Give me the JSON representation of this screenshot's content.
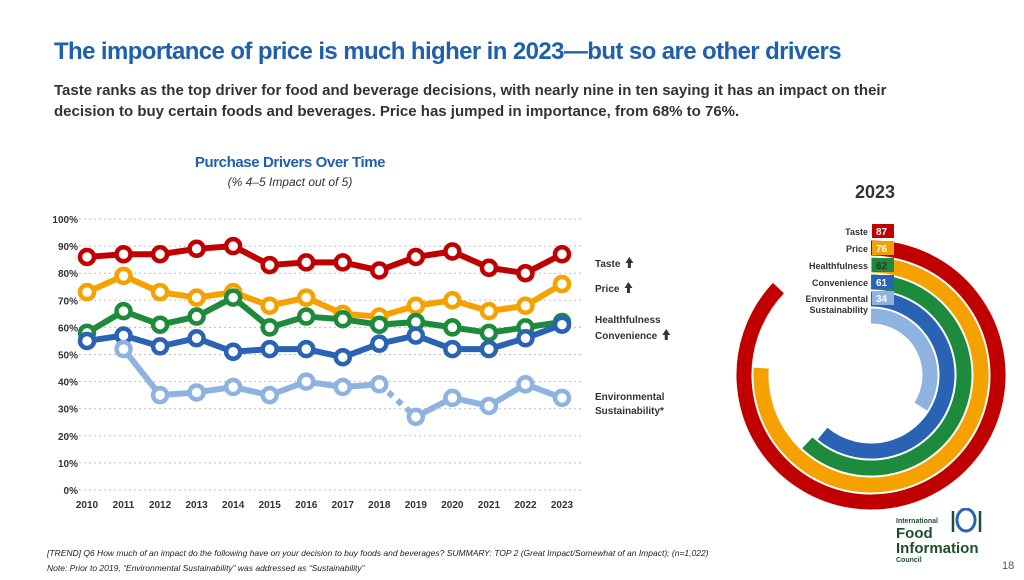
{
  "header": {
    "title": "The importance of price is much higher in 2023—but so are other drivers",
    "subtitle": "Taste ranks as the top driver for food and beverage decisions, with nearly nine in ten saying it has an impact on their decision to buy certain foods and beverages. Price has jumped in importance, from 68% to 76%."
  },
  "colors": {
    "taste": "#c00000",
    "price": "#f5a100",
    "healthfulness": "#1e8a3c",
    "convenience": "#2a62b4",
    "sustainability": "#8fb3e0",
    "title_blue": "#1f5fae"
  },
  "chart_data": [
    {
      "type": "line",
      "title": "Purchase Drivers Over Time",
      "subtitle": "(% 4–5 Impact out of 5)",
      "x": [
        "2010",
        "2011",
        "2012",
        "2013",
        "2014",
        "2015",
        "2016",
        "2017",
        "2018",
        "2019",
        "2020",
        "2021",
        "2022",
        "2023"
      ],
      "ylim": [
        0,
        100
      ],
      "yticks": [
        "0%",
        "10%",
        "20%",
        "30%",
        "40%",
        "50%",
        "60%",
        "70%",
        "80%",
        "90%",
        "100%"
      ],
      "grid": true,
      "series": [
        {
          "name": "Taste",
          "color_key": "taste",
          "arrow": "up",
          "values": [
            86,
            87,
            87,
            89,
            90,
            83,
            84,
            84,
            81,
            86,
            88,
            82,
            80,
            87
          ]
        },
        {
          "name": "Price",
          "color_key": "price",
          "arrow": "up",
          "values": [
            73,
            79,
            73,
            71,
            73,
            68,
            71,
            65,
            64,
            68,
            70,
            66,
            68,
            76
          ]
        },
        {
          "name": "Healthfulness",
          "color_key": "healthfulness",
          "arrow": "",
          "values": [
            58,
            66,
            61,
            64,
            71,
            60,
            64,
            63,
            61,
            62,
            60,
            58,
            60,
            62
          ]
        },
        {
          "name": "Convenience",
          "color_key": "convenience",
          "arrow": "up",
          "values": [
            55,
            57,
            53,
            56,
            51,
            52,
            52,
            49,
            54,
            57,
            52,
            52,
            56,
            61
          ]
        },
        {
          "name": "Environmental Sustainability*",
          "color_key": "sustainability",
          "arrow": "",
          "values": [
            null,
            52,
            35,
            36,
            38,
            35,
            40,
            38,
            39,
            27,
            34,
            31,
            39,
            34
          ],
          "dashed_segment": [
            8,
            9
          ]
        }
      ]
    },
    {
      "type": "radial-bar",
      "title": "2023",
      "categories": [
        "Taste",
        "Price",
        "Healthfulness",
        "Convenience",
        "Environmental Sustainability"
      ],
      "values": [
        87,
        76,
        62,
        61,
        34
      ],
      "color_keys": [
        "taste",
        "price",
        "healthfulness",
        "convenience",
        "sustainability"
      ]
    }
  ],
  "legend_labels": {
    "taste": "Taste",
    "price": "Price",
    "healthfulness": "Healthfulness",
    "convenience": "Convenience",
    "sustainability_1": "Environmental",
    "sustainability_2": "Sustainability*"
  },
  "radial_labels": {
    "taste": "Taste",
    "price": "Price",
    "healthfulness": "Healthfulness",
    "convenience": "Convenience",
    "sustainability_1": "Environmental",
    "sustainability_2": "Sustainability",
    "taste_val": "87",
    "price_val": "76",
    "healthfulness_val": "62",
    "convenience_val": "61",
    "sustainability_val": "34"
  },
  "footer": {
    "note1": "[TREND] Q6 How much of an impact do the following have on your decision to buy foods and beverages? SUMMARY: TOP 2 (Great Impact/Somewhat of an Impact); (n=1,022)",
    "note2": "Note: Prior to 2019, “Environmental Sustainability” was addressed as “Sustainability”",
    "page_number": "18"
  },
  "logo": {
    "line1": "International",
    "line2": "Food",
    "line3": "Information",
    "line4": "Council"
  }
}
